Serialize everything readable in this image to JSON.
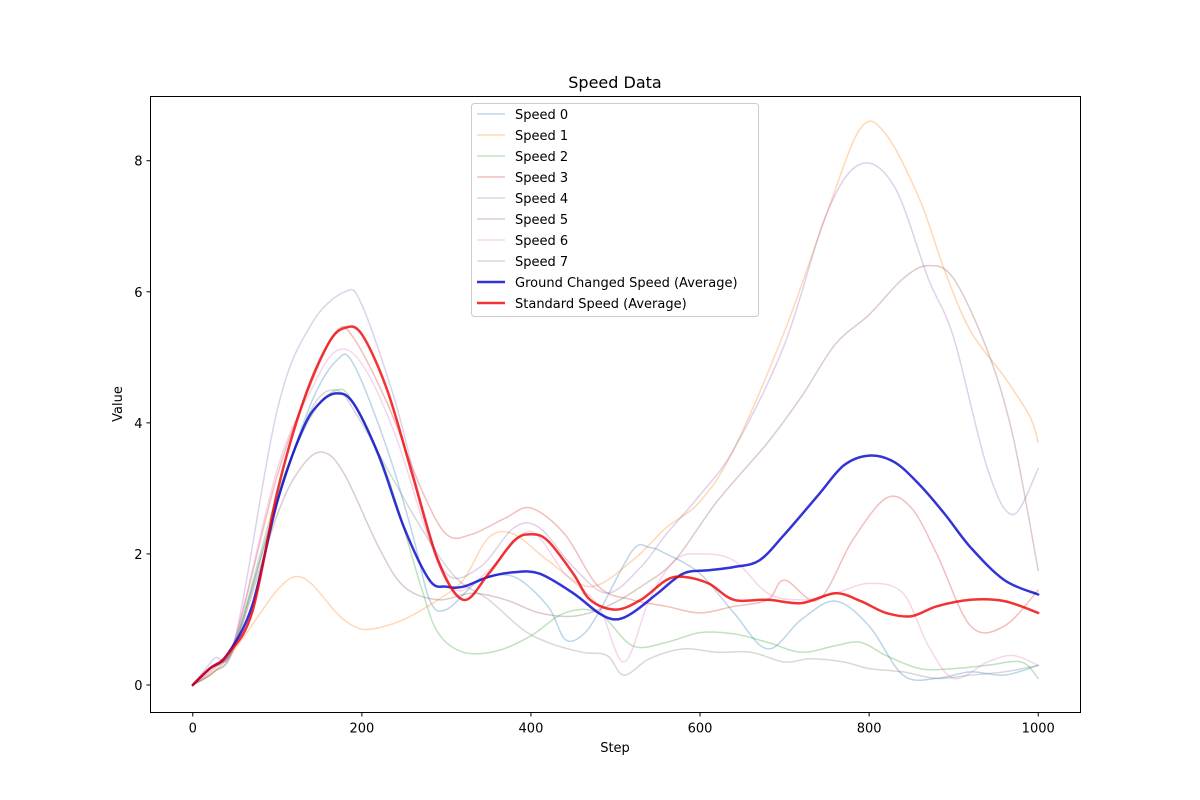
{
  "chart_data": {
    "type": "line",
    "title": "Speed Data",
    "xlabel": "Step",
    "ylabel": "Value",
    "xlim": [
      -50,
      1050
    ],
    "ylim": [
      -0.42,
      8.98
    ],
    "xticks": [
      0,
      200,
      400,
      600,
      800,
      1000
    ],
    "yticks": [
      0,
      2,
      4,
      6,
      8
    ],
    "xtick_labels": [
      "0",
      "200",
      "400",
      "600",
      "800",
      "1000"
    ],
    "ytick_labels": [
      "0",
      "2",
      "4",
      "6",
      "8"
    ],
    "grid": false,
    "legend_position": "top-center",
    "series": [
      {
        "name": "Speed 0",
        "color": "#1f77b4",
        "alpha": 0.3,
        "width": 1.5,
        "points": [
          [
            0,
            0
          ],
          [
            25,
            0.3
          ],
          [
            50,
            0.65
          ],
          [
            100,
            2.8
          ],
          [
            140,
            4.3
          ],
          [
            170,
            4.95
          ],
          [
            190,
            4.9
          ],
          [
            230,
            3.6
          ],
          [
            260,
            2.3
          ],
          [
            280,
            1.3
          ],
          [
            300,
            1.15
          ],
          [
            340,
            1.6
          ],
          [
            380,
            1.65
          ],
          [
            420,
            1.2
          ],
          [
            440,
            0.7
          ],
          [
            460,
            0.75
          ],
          [
            480,
            1.1
          ],
          [
            520,
            2.05
          ],
          [
            540,
            2.1
          ],
          [
            560,
            2.0
          ],
          [
            600,
            1.7
          ],
          [
            640,
            1.1
          ],
          [
            680,
            0.55
          ],
          [
            720,
            1.0
          ],
          [
            760,
            1.28
          ],
          [
            800,
            0.9
          ],
          [
            840,
            0.15
          ],
          [
            880,
            0.1
          ],
          [
            920,
            0.2
          ],
          [
            960,
            0.15
          ],
          [
            1000,
            0.3
          ]
        ]
      },
      {
        "name": "Speed 1",
        "color": "#ff7f0e",
        "alpha": 0.3,
        "width": 1.5,
        "points": [
          [
            0,
            0
          ],
          [
            25,
            0.2
          ],
          [
            50,
            0.55
          ],
          [
            80,
            1.1
          ],
          [
            100,
            1.45
          ],
          [
            120,
            1.65
          ],
          [
            140,
            1.55
          ],
          [
            170,
            1.1
          ],
          [
            190,
            0.9
          ],
          [
            210,
            0.85
          ],
          [
            250,
            1.0
          ],
          [
            290,
            1.3
          ],
          [
            320,
            1.6
          ],
          [
            350,
            2.25
          ],
          [
            380,
            2.3
          ],
          [
            420,
            1.9
          ],
          [
            470,
            1.5
          ],
          [
            520,
            1.9
          ],
          [
            560,
            2.4
          ],
          [
            600,
            2.8
          ],
          [
            640,
            3.6
          ],
          [
            700,
            5.4
          ],
          [
            750,
            7.2
          ],
          [
            790,
            8.5
          ],
          [
            820,
            8.4
          ],
          [
            860,
            7.4
          ],
          [
            890,
            6.3
          ],
          [
            920,
            5.4
          ],
          [
            960,
            4.7
          ],
          [
            990,
            4.1
          ],
          [
            1000,
            3.7
          ]
        ]
      },
      {
        "name": "Speed 2",
        "color": "#2ca02c",
        "alpha": 0.3,
        "width": 1.5,
        "points": [
          [
            0,
            0
          ],
          [
            25,
            0.3
          ],
          [
            50,
            0.65
          ],
          [
            100,
            2.9
          ],
          [
            140,
            4.1
          ],
          [
            170,
            4.5
          ],
          [
            190,
            4.3
          ],
          [
            230,
            3.2
          ],
          [
            270,
            1.5
          ],
          [
            290,
            0.8
          ],
          [
            320,
            0.5
          ],
          [
            360,
            0.52
          ],
          [
            400,
            0.75
          ],
          [
            440,
            1.1
          ],
          [
            480,
            1.1
          ],
          [
            520,
            0.6
          ],
          [
            560,
            0.65
          ],
          [
            600,
            0.8
          ],
          [
            640,
            0.78
          ],
          [
            680,
            0.65
          ],
          [
            720,
            0.5
          ],
          [
            760,
            0.6
          ],
          [
            790,
            0.65
          ],
          [
            820,
            0.45
          ],
          [
            860,
            0.25
          ],
          [
            900,
            0.25
          ],
          [
            940,
            0.3
          ],
          [
            980,
            0.35
          ],
          [
            1000,
            0.1
          ]
        ]
      },
      {
        "name": "Speed 3",
        "color": "#d62728",
        "alpha": 0.3,
        "width": 1.5,
        "points": [
          [
            0,
            0
          ],
          [
            25,
            0.25
          ],
          [
            50,
            0.7
          ],
          [
            100,
            3.2
          ],
          [
            140,
            4.6
          ],
          [
            170,
            5.4
          ],
          [
            190,
            5.3
          ],
          [
            230,
            4.3
          ],
          [
            270,
            3.0
          ],
          [
            300,
            2.3
          ],
          [
            330,
            2.3
          ],
          [
            370,
            2.55
          ],
          [
            400,
            2.7
          ],
          [
            440,
            2.3
          ],
          [
            480,
            1.5
          ],
          [
            520,
            1.3
          ],
          [
            560,
            1.2
          ],
          [
            600,
            1.1
          ],
          [
            640,
            1.2
          ],
          [
            680,
            1.3
          ],
          [
            700,
            1.6
          ],
          [
            740,
            1.3
          ],
          [
            780,
            2.2
          ],
          [
            820,
            2.85
          ],
          [
            850,
            2.7
          ],
          [
            880,
            2.0
          ],
          [
            920,
            0.9
          ],
          [
            960,
            0.9
          ],
          [
            1000,
            1.45
          ]
        ]
      },
      {
        "name": "Speed 4",
        "color": "#9467bd",
        "alpha": 0.3,
        "width": 1.5,
        "points": [
          [
            0,
            0
          ],
          [
            25,
            0.4
          ],
          [
            50,
            0.7
          ],
          [
            100,
            4.2
          ],
          [
            140,
            5.5
          ],
          [
            180,
            6.0
          ],
          [
            200,
            5.8
          ],
          [
            240,
            4.3
          ],
          [
            270,
            2.8
          ],
          [
            300,
            1.7
          ],
          [
            340,
            1.8
          ],
          [
            380,
            2.4
          ],
          [
            410,
            2.4
          ],
          [
            450,
            1.8
          ],
          [
            490,
            1.4
          ],
          [
            530,
            1.8
          ],
          [
            560,
            2.3
          ],
          [
            600,
            2.9
          ],
          [
            640,
            3.6
          ],
          [
            700,
            5.2
          ],
          [
            750,
            7.2
          ],
          [
            790,
            7.95
          ],
          [
            830,
            7.6
          ],
          [
            870,
            6.2
          ],
          [
            900,
            5.3
          ],
          [
            940,
            3.3
          ],
          [
            970,
            2.6
          ],
          [
            1000,
            3.3
          ]
        ]
      },
      {
        "name": "Speed 5",
        "color": "#8c564b",
        "alpha": 0.3,
        "width": 1.5,
        "points": [
          [
            0,
            0
          ],
          [
            25,
            0.2
          ],
          [
            50,
            0.6
          ],
          [
            100,
            2.6
          ],
          [
            130,
            3.35
          ],
          [
            155,
            3.55
          ],
          [
            180,
            3.2
          ],
          [
            220,
            2.1
          ],
          [
            250,
            1.5
          ],
          [
            290,
            1.3
          ],
          [
            330,
            1.4
          ],
          [
            370,
            1.3
          ],
          [
            410,
            1.1
          ],
          [
            450,
            1.05
          ],
          [
            490,
            1.2
          ],
          [
            530,
            1.5
          ],
          [
            570,
            1.9
          ],
          [
            620,
            2.8
          ],
          [
            680,
            3.7
          ],
          [
            720,
            4.4
          ],
          [
            760,
            5.2
          ],
          [
            800,
            5.65
          ],
          [
            840,
            6.2
          ],
          [
            870,
            6.4
          ],
          [
            900,
            6.2
          ],
          [
            940,
            5.1
          ],
          [
            970,
            3.8
          ],
          [
            1000,
            1.75
          ]
        ]
      },
      {
        "name": "Speed 6",
        "color": "#e377c2",
        "alpha": 0.3,
        "width": 1.5,
        "points": [
          [
            0,
            0
          ],
          [
            25,
            0.3
          ],
          [
            50,
            0.7
          ],
          [
            100,
            3.3
          ],
          [
            140,
            4.5
          ],
          [
            170,
            5.1
          ],
          [
            200,
            4.9
          ],
          [
            240,
            3.8
          ],
          [
            280,
            2.2
          ],
          [
            310,
            1.45
          ],
          [
            350,
            1.75
          ],
          [
            390,
            2.3
          ],
          [
            410,
            2.25
          ],
          [
            440,
            1.7
          ],
          [
            480,
            1.2
          ],
          [
            510,
            0.35
          ],
          [
            540,
            1.3
          ],
          [
            570,
            1.9
          ],
          [
            600,
            2.0
          ],
          [
            640,
            1.9
          ],
          [
            680,
            1.4
          ],
          [
            720,
            1.3
          ],
          [
            760,
            1.4
          ],
          [
            800,
            1.55
          ],
          [
            840,
            1.4
          ],
          [
            870,
            0.6
          ],
          [
            900,
            0.1
          ],
          [
            940,
            0.35
          ],
          [
            970,
            0.45
          ],
          [
            1000,
            0.3
          ]
        ]
      },
      {
        "name": "Speed 7",
        "color": "#7f7f7f",
        "alpha": 0.3,
        "width": 1.5,
        "points": [
          [
            0,
            0
          ],
          [
            25,
            0.2
          ],
          [
            50,
            0.6
          ],
          [
            100,
            2.8
          ],
          [
            140,
            4.2
          ],
          [
            170,
            4.5
          ],
          [
            195,
            4.1
          ],
          [
            230,
            3.3
          ],
          [
            270,
            2.4
          ],
          [
            310,
            1.65
          ],
          [
            350,
            1.3
          ],
          [
            390,
            0.85
          ],
          [
            420,
            0.65
          ],
          [
            460,
            0.5
          ],
          [
            490,
            0.45
          ],
          [
            510,
            0.15
          ],
          [
            540,
            0.4
          ],
          [
            580,
            0.55
          ],
          [
            620,
            0.5
          ],
          [
            660,
            0.5
          ],
          [
            700,
            0.35
          ],
          [
            730,
            0.4
          ],
          [
            770,
            0.35
          ],
          [
            800,
            0.25
          ],
          [
            840,
            0.2
          ],
          [
            880,
            0.1
          ],
          [
            920,
            0.15
          ],
          [
            960,
            0.2
          ],
          [
            1000,
            0.3
          ]
        ]
      },
      {
        "name": "Ground Changed Speed (Average)",
        "color": "#0000cc",
        "alpha": 0.8,
        "width": 2.5,
        "points": [
          [
            0,
            0
          ],
          [
            20,
            0.25
          ],
          [
            40,
            0.45
          ],
          [
            70,
            1.2
          ],
          [
            100,
            2.8
          ],
          [
            130,
            3.9
          ],
          [
            150,
            4.3
          ],
          [
            170,
            4.45
          ],
          [
            190,
            4.3
          ],
          [
            220,
            3.5
          ],
          [
            250,
            2.4
          ],
          [
            280,
            1.6
          ],
          [
            300,
            1.5
          ],
          [
            320,
            1.5
          ],
          [
            350,
            1.65
          ],
          [
            380,
            1.72
          ],
          [
            410,
            1.7
          ],
          [
            450,
            1.4
          ],
          [
            480,
            1.1
          ],
          [
            500,
            1.0
          ],
          [
            520,
            1.1
          ],
          [
            550,
            1.4
          ],
          [
            580,
            1.7
          ],
          [
            610,
            1.75
          ],
          [
            640,
            1.8
          ],
          [
            670,
            1.9
          ],
          [
            700,
            2.3
          ],
          [
            740,
            2.9
          ],
          [
            770,
            3.35
          ],
          [
            800,
            3.5
          ],
          [
            830,
            3.4
          ],
          [
            860,
            3.05
          ],
          [
            890,
            2.6
          ],
          [
            920,
            2.1
          ],
          [
            960,
            1.6
          ],
          [
            1000,
            1.38
          ]
        ]
      },
      {
        "name": "Standard Speed (Average)",
        "color": "#ee0000",
        "alpha": 0.8,
        "width": 2.5,
        "points": [
          [
            0,
            0
          ],
          [
            20,
            0.25
          ],
          [
            40,
            0.45
          ],
          [
            70,
            1.1
          ],
          [
            100,
            2.95
          ],
          [
            130,
            4.3
          ],
          [
            160,
            5.2
          ],
          [
            180,
            5.45
          ],
          [
            200,
            5.35
          ],
          [
            230,
            4.5
          ],
          [
            260,
            3.2
          ],
          [
            290,
            1.9
          ],
          [
            320,
            1.3
          ],
          [
            350,
            1.7
          ],
          [
            380,
            2.2
          ],
          [
            400,
            2.3
          ],
          [
            420,
            2.2
          ],
          [
            450,
            1.7
          ],
          [
            470,
            1.3
          ],
          [
            500,
            1.15
          ],
          [
            530,
            1.3
          ],
          [
            560,
            1.6
          ],
          [
            580,
            1.65
          ],
          [
            610,
            1.55
          ],
          [
            640,
            1.3
          ],
          [
            680,
            1.3
          ],
          [
            720,
            1.25
          ],
          [
            760,
            1.4
          ],
          [
            790,
            1.28
          ],
          [
            820,
            1.1
          ],
          [
            850,
            1.05
          ],
          [
            880,
            1.2
          ],
          [
            920,
            1.3
          ],
          [
            960,
            1.28
          ],
          [
            1000,
            1.1
          ]
        ]
      }
    ]
  }
}
